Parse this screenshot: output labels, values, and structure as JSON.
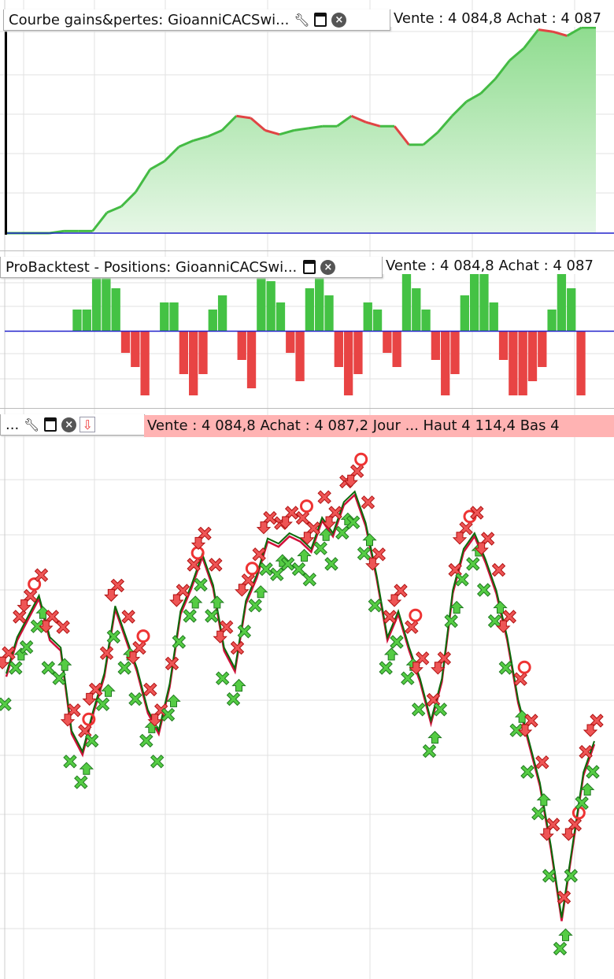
{
  "panels": {
    "equity": {
      "title": "Courbe gains&pertes: GioanniCACSwi...",
      "readout": "Vente : 4 084,8 Achat : 4 087",
      "fill_color": "#8fdc8f",
      "up_color": "#44bb44",
      "down_color": "#e04444",
      "baseline_color": "#2222cc"
    },
    "positions": {
      "title": "ProBacktest - Positions: GioanniCACSwi...",
      "readout": "Vente : 4 084,8 Achat : 4 087"
    },
    "price": {
      "title": "...",
      "readout": "Vente : 4 084,8 Achat : 4 087,2 Jour ... Haut 4 114,4 Bas 4"
    }
  },
  "chart_data": [
    {
      "type": "area",
      "values_pct": [
        0,
        0,
        0,
        0,
        1,
        1,
        1,
        10,
        13,
        20,
        31,
        35,
        42,
        45,
        47,
        50,
        57,
        56,
        50,
        48,
        50,
        51,
        52,
        52,
        57,
        54,
        52,
        52,
        43,
        43,
        49,
        57,
        64,
        68,
        75,
        84,
        90,
        99,
        98,
        96,
        100,
        100
      ]
    },
    {
      "type": "bar",
      "values": [
        0,
        0.3,
        0.3,
        0.8,
        0.8,
        0.6,
        -0.3,
        -0.5,
        -0.9,
        0,
        0.4,
        0.4,
        -0.6,
        -0.9,
        -0.6,
        0.3,
        0.5,
        0,
        -0.4,
        -0.8,
        0.9,
        0.7,
        0.4,
        -0.3,
        -0.7,
        0.6,
        0.9,
        0.5,
        -0.5,
        -0.9,
        -0.6,
        0.4,
        0.3,
        -0.3,
        -0.5,
        0.8,
        0.6,
        0.3,
        -0.4,
        -0.9,
        -0.6,
        0.5,
        0.8,
        0.9,
        0.4,
        -0.4,
        -0.9,
        -0.9,
        -0.7,
        -0.5,
        0.3,
        0.8,
        0.6,
        -0.9,
        0
      ]
    },
    {
      "type": "line",
      "price_pct": [
        53,
        60,
        64,
        68,
        60,
        58,
        42,
        38,
        46,
        53,
        66,
        60,
        54,
        46,
        42,
        51,
        65,
        70,
        76,
        70,
        58,
        54,
        67,
        72,
        79,
        78,
        80,
        79,
        77,
        83,
        80,
        86,
        88,
        82,
        72,
        60,
        65,
        58,
        52,
        44,
        52,
        69,
        77,
        80,
        75,
        69,
        60,
        48,
        40,
        32,
        20,
        6,
        20,
        34,
        40
      ],
      "markers": "red-above, green-below"
    }
  ]
}
